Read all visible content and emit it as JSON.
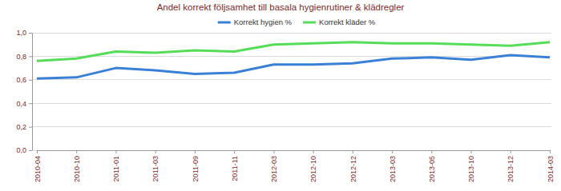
{
  "chart_data": {
    "type": "line",
    "title": "Andel korrekt följsamhet till basala hygienrutiner & klädregler",
    "categories": [
      "2010-04",
      "2010-10",
      "2011-01",
      "2011-03",
      "2011-09",
      "2011-11",
      "2012-03",
      "2012-10",
      "2012-12",
      "2013-03",
      "2013-05",
      "2013-10",
      "2013-12",
      "2014-03"
    ],
    "series": [
      {
        "name": "Korrekt hygien %",
        "color": "#3a80d6",
        "values": [
          0.61,
          0.62,
          0.7,
          0.68,
          0.65,
          0.66,
          0.73,
          0.73,
          0.74,
          0.78,
          0.79,
          0.77,
          0.81,
          0.79
        ]
      },
      {
        "name": "Korrekt kläder %",
        "color": "#55dd5a",
        "values": [
          0.76,
          0.78,
          0.84,
          0.83,
          0.85,
          0.84,
          0.9,
          0.91,
          0.92,
          0.91,
          0.91,
          0.9,
          0.89,
          0.92
        ]
      }
    ],
    "ylim": [
      0,
      1
    ],
    "yticks": [
      {
        "value": 0,
        "label": "0,0"
      },
      {
        "value": 0.2,
        "label": "0,2"
      },
      {
        "value": 0.4,
        "label": "0,4"
      },
      {
        "value": 0.6,
        "label": "0,6"
      },
      {
        "value": 0.8,
        "label": "0,8"
      },
      {
        "value": 1,
        "label": "1,0"
      }
    ],
    "grid": true,
    "legend": "top"
  }
}
